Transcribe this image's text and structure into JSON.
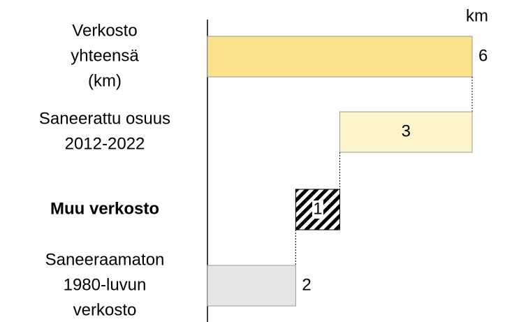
{
  "chart_data": {
    "type": "waterfall",
    "unit": "km",
    "categories": [
      [
        "Verkosto",
        "yhteensä",
        "(km)"
      ],
      [
        "Saneerattu osuus",
        "2012-2022"
      ],
      [
        "Muu verkosto"
      ],
      [
        "Saneeraamaton",
        "1980-luvun",
        "verkosto"
      ]
    ],
    "bold": [
      false,
      false,
      true,
      false
    ],
    "values": [
      6,
      3,
      1,
      2
    ],
    "colors": [
      "#fde28c",
      "#fef4c9",
      "#ffffff",
      "#e6e6e6"
    ],
    "hatched": [
      false,
      false,
      true,
      false
    ],
    "xlim": [
      0,
      6
    ]
  }
}
